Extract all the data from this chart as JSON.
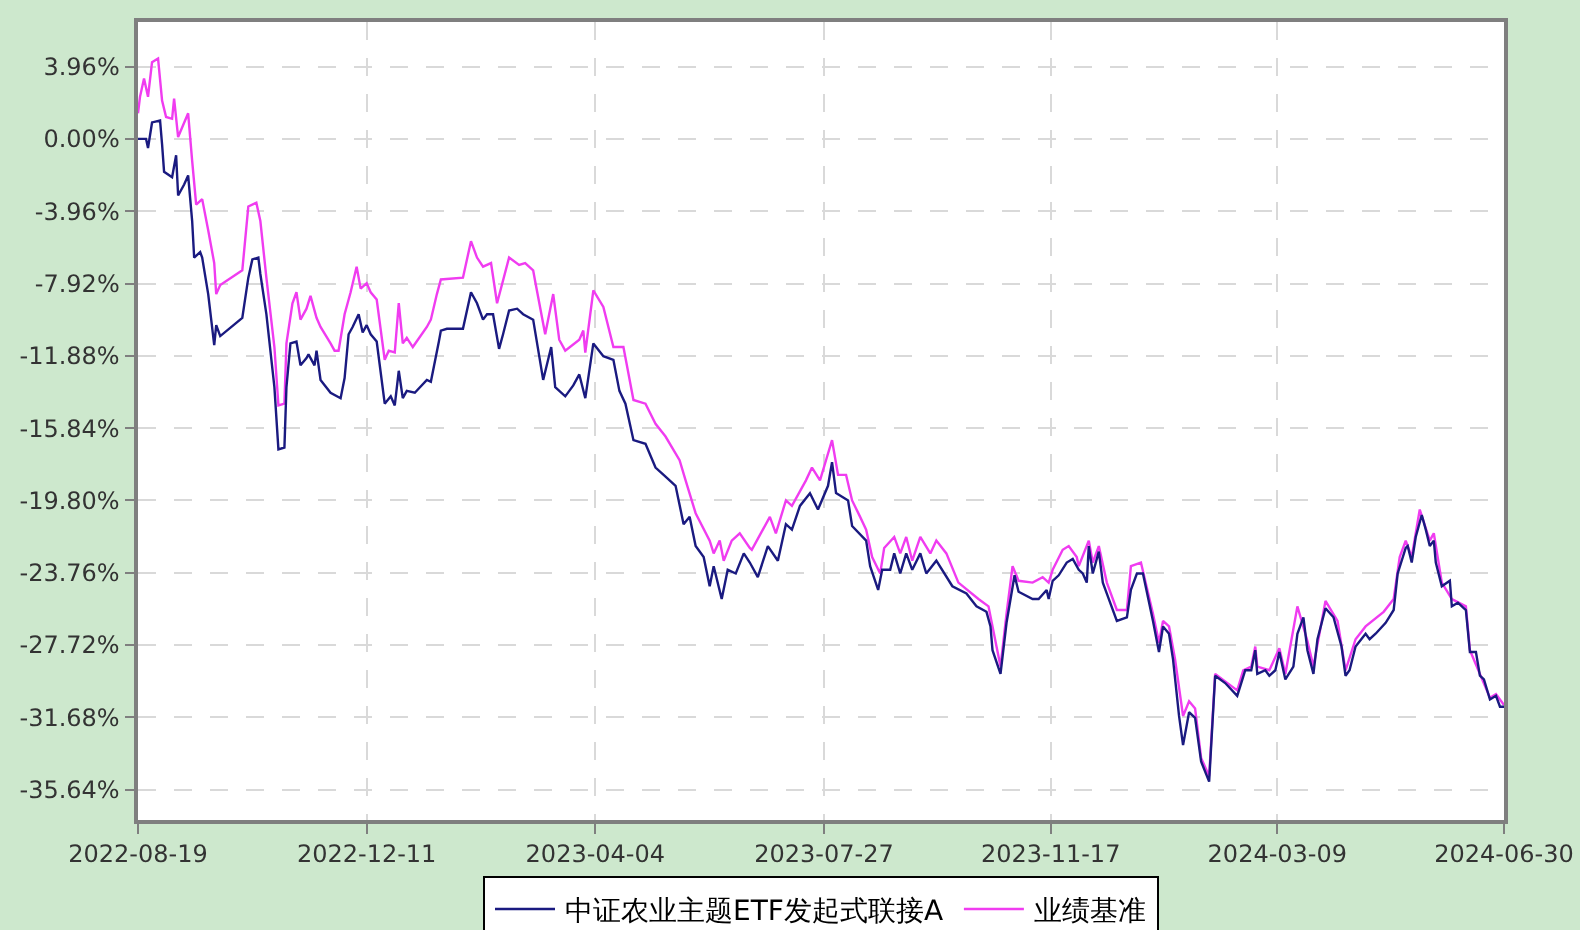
{
  "chart_data": {
    "type": "line",
    "xlim": [
      "2022-08-19",
      "2024-06-30"
    ],
    "xticks": [
      "2022-08-19",
      "2022-12-11",
      "2023-04-04",
      "2023-07-27",
      "2023-11-17",
      "2024-03-09",
      "2024-06-30"
    ],
    "ylim": [
      -37.3,
      6.4
    ],
    "yticks": [
      {
        "value": 3.96,
        "label": "3.96%"
      },
      {
        "value": 0,
        "label": "0.00%"
      },
      {
        "value": -3.96,
        "label": "-3.96%"
      },
      {
        "value": -7.92,
        "label": "-7.92%"
      },
      {
        "value": -11.88,
        "label": "-11.88%"
      },
      {
        "value": -15.84,
        "label": "-15.84%"
      },
      {
        "value": -19.8,
        "label": "-19.80%"
      },
      {
        "value": -23.76,
        "label": "-23.76%"
      },
      {
        "value": -27.72,
        "label": "-27.72%"
      },
      {
        "value": -31.68,
        "label": "-31.68%"
      },
      {
        "value": -35.64,
        "label": "-35.64%"
      }
    ],
    "grid": true,
    "legend": "bottom",
    "series": [
      {
        "name": "中证农业主题ETF发起式联接A",
        "color": "#1a1a80",
        "x": [
          "2022-08-19",
          "2022-08-23",
          "2022-08-24",
          "2022-08-26",
          "2022-08-30",
          "2022-08-31",
          "2022-09-01",
          "2022-09-05",
          "2022-09-07",
          "2022-09-08",
          "2022-09-11",
          "2022-09-13",
          "2022-09-15",
          "2022-09-16",
          "2022-09-19",
          "2022-09-20",
          "2022-09-23",
          "2022-09-26",
          "2022-09-27",
          "2022-09-29",
          "2022-10-10",
          "2022-10-13",
          "2022-10-15",
          "2022-10-18",
          "2022-10-19",
          "2022-10-22",
          "2022-10-26",
          "2022-10-28",
          "2022-10-31",
          "2022-11-01",
          "2022-11-03",
          "2022-11-06",
          "2022-11-08",
          "2022-11-11",
          "2022-11-12",
          "2022-11-15",
          "2022-11-16",
          "2022-11-18",
          "2022-11-23",
          "2022-11-28",
          "2022-11-30",
          "2022-12-02",
          "2022-12-04",
          "2022-12-07",
          "2022-12-09",
          "2022-12-11",
          "2022-12-13",
          "2022-12-16",
          "2022-12-20",
          "2022-12-23",
          "2022-12-25",
          "2022-12-27",
          "2022-12-29",
          "2022-12-31",
          "2023-01-04",
          "2023-01-10",
          "2023-01-12",
          "2023-01-16",
          "2023-01-17",
          "2023-01-20",
          "2023-01-28",
          "2023-02-01",
          "2023-02-04",
          "2023-02-07",
          "2023-02-09",
          "2023-02-12",
          "2023-02-15",
          "2023-02-17",
          "2023-02-20",
          "2023-02-24",
          "2023-02-27",
          "2023-03-04",
          "2023-03-09",
          "2023-03-13",
          "2023-03-15",
          "2023-03-20",
          "2023-03-24",
          "2023-03-27",
          "2023-03-30",
          "2023-04-03",
          "2023-04-08",
          "2023-04-13",
          "2023-04-16",
          "2023-04-19",
          "2023-04-23",
          "2023-04-29",
          "2023-05-04",
          "2023-05-09",
          "2023-05-14",
          "2023-05-18",
          "2023-05-21",
          "2023-05-24",
          "2023-05-28",
          "2023-05-31",
          "2023-06-02",
          "2023-06-06",
          "2023-06-09",
          "2023-06-13",
          "2023-06-17",
          "2023-06-20",
          "2023-06-24",
          "2023-06-29",
          "2023-07-04",
          "2023-07-08",
          "2023-07-11",
          "2023-07-15",
          "2023-07-20",
          "2023-07-24",
          "2023-07-29",
          "2023-07-31",
          "2023-08-02",
          "2023-08-05",
          "2023-08-08",
          "2023-08-10",
          "2023-08-17",
          "2023-08-19",
          "2023-08-23",
          "2023-08-25",
          "2023-08-29",
          "2023-08-31",
          "2023-09-03",
          "2023-09-06",
          "2023-09-09",
          "2023-09-13",
          "2023-09-16",
          "2023-09-21",
          "2023-09-29",
          "2023-10-06",
          "2023-10-11",
          "2023-10-16",
          "2023-10-18",
          "2023-10-19",
          "2023-10-23",
          "2023-10-26",
          "2023-10-30",
          "2023-11-01",
          "2023-11-08",
          "2023-11-11",
          "2023-11-15",
          "2023-11-16",
          "2023-11-18",
          "2023-11-21",
          "2023-11-25",
          "2023-11-28",
          "2023-12-01",
          "2023-12-03",
          "2023-12-05",
          "2023-12-06",
          "2023-12-08",
          "2023-12-11",
          "2023-12-13",
          "2023-12-15",
          "2023-12-20",
          "2023-12-25",
          "2023-12-27",
          "2023-12-30",
          "2024-01-02",
          "2024-01-07",
          "2024-01-10",
          "2024-01-12",
          "2024-01-15",
          "2024-01-17",
          "2024-01-20",
          "2024-01-22",
          "2024-01-25",
          "2024-01-28",
          "2024-01-31",
          "2024-02-04",
          "2024-02-07",
          "2024-02-12",
          "2024-02-18",
          "2024-02-20",
          "2024-02-22",
          "2024-02-25",
          "2024-02-27",
          "2024-02-28",
          "2024-03-03",
          "2024-03-05",
          "2024-03-08",
          "2024-03-10",
          "2024-03-13",
          "2024-03-17",
          "2024-03-19",
          "2024-03-22",
          "2024-03-24",
          "2024-03-27",
          "2024-03-29",
          "2024-04-02",
          "2024-04-06",
          "2024-04-10",
          "2024-04-12",
          "2024-04-14",
          "2024-04-17",
          "2024-04-22",
          "2024-04-24",
          "2024-04-27",
          "2024-05-02",
          "2024-05-06",
          "2024-05-08",
          "2024-05-12",
          "2024-05-13",
          "2024-05-15",
          "2024-05-17",
          "2024-05-20",
          "2024-05-22",
          "2024-05-24",
          "2024-05-26",
          "2024-05-27",
          "2024-05-30",
          "2024-06-03",
          "2024-06-04",
          "2024-06-07",
          "2024-06-11",
          "2024-06-13",
          "2024-06-16",
          "2024-06-18",
          "2024-06-20",
          "2024-06-23",
          "2024-06-26",
          "2024-06-28",
          "2024-06-30"
        ],
        "values": [
          0.0,
          0.0,
          -0.5,
          0.9,
          1.0,
          -0.3,
          -1.8,
          -2.1,
          -0.9,
          -3.1,
          -2.5,
          -2.0,
          -4.5,
          -6.5,
          -6.2,
          -6.5,
          -8.5,
          -11.3,
          -10.2,
          -10.8,
          -9.8,
          -7.6,
          -6.6,
          -6.5,
          -7.4,
          -9.6,
          -13.6,
          -17.0,
          -16.9,
          -13.6,
          -11.2,
          -11.1,
          -12.4,
          -12.0,
          -11.8,
          -12.4,
          -11.6,
          -13.2,
          -13.9,
          -14.2,
          -13.1,
          -10.7,
          -10.3,
          -9.6,
          -10.6,
          -10.2,
          -10.7,
          -11.1,
          -14.5,
          -14.1,
          -14.6,
          -12.7,
          -14.2,
          -13.8,
          -13.9,
          -13.2,
          -13.3,
          -11.1,
          -10.5,
          -10.4,
          -10.4,
          -8.4,
          -9.0,
          -9.9,
          -9.6,
          -9.6,
          -11.5,
          -10.7,
          -9.4,
          -9.3,
          -9.6,
          -9.9,
          -13.2,
          -11.4,
          -13.6,
          -14.1,
          -13.5,
          -12.9,
          -14.2,
          -11.2,
          -11.9,
          -12.1,
          -13.8,
          -14.5,
          -16.5,
          -16.7,
          -18.0,
          -18.5,
          -19.0,
          -21.1,
          -20.7,
          -22.3,
          -22.9,
          -24.5,
          -23.4,
          -25.2,
          -23.6,
          -23.8,
          -22.7,
          -23.2,
          -24.0,
          -22.3,
          -23.1,
          -21.1,
          -21.4,
          -20.1,
          -19.4,
          -20.3,
          -19.0,
          -17.7,
          -19.4,
          -19.6,
          -19.8,
          -21.2,
          -22.0,
          -23.4,
          -24.7,
          -23.6,
          -23.6,
          -22.7,
          -23.8,
          -22.7,
          -23.6,
          -22.7,
          -23.8,
          -23.1,
          -24.5,
          -24.9,
          -25.6,
          -25.9,
          -26.7,
          -28.0,
          -29.3,
          -26.5,
          -23.9,
          -24.8,
          -25.2,
          -25.2,
          -24.7,
          -25.2,
          -24.2,
          -23.9,
          -23.2,
          -23.0,
          -23.6,
          -23.8,
          -24.3,
          -22.3,
          -23.8,
          -22.6,
          -24.3,
          -24.9,
          -26.4,
          -26.2,
          -24.7,
          -23.8,
          -23.8,
          -26.4,
          -28.1,
          -26.7,
          -27.1,
          -28.5,
          -31.6,
          -33.2,
          -31.4,
          -31.7,
          -34.1,
          -35.2,
          -29.4,
          -29.8,
          -30.5,
          -29.8,
          -29.1,
          -29.1,
          -28.0,
          -29.3,
          -29.1,
          -29.4,
          -29.1,
          -28.1,
          -29.6,
          -28.9,
          -27.1,
          -26.2,
          -28.0,
          -29.3,
          -27.4,
          -25.7,
          -26.2,
          -27.8,
          -29.4,
          -29.1,
          -27.8,
          -27.1,
          -27.4,
          -27.1,
          -26.5,
          -25.8,
          -23.8,
          -22.4,
          -22.3,
          -23.2,
          -21.8,
          -20.6,
          -21.4,
          -22.3,
          -22.0,
          -23.2,
          -24.5,
          -24.2,
          -25.6,
          -25.4,
          -25.8,
          -28.1,
          -28.1,
          -29.4,
          -29.6,
          -30.7,
          -30.5,
          -31.1,
          -31.1
        ]
      },
      {
        "name": "业绩基准",
        "color": "#f03cf0",
        "x": [
          "2022-08-19",
          "2022-08-20",
          "2022-08-22",
          "2022-08-24",
          "2022-08-26",
          "2022-08-29",
          "2022-08-31",
          "2022-09-02",
          "2022-09-05",
          "2022-09-06",
          "2022-09-08",
          "2022-09-13",
          "2022-09-15",
          "2022-09-17",
          "2022-09-20",
          "2022-09-23",
          "2022-09-26",
          "2022-09-27",
          "2022-09-29",
          "2022-10-10",
          "2022-10-13",
          "2022-10-17",
          "2022-10-19",
          "2022-10-22",
          "2022-10-26",
          "2022-10-28",
          "2022-10-31",
          "2022-11-01",
          "2022-11-04",
          "2022-11-06",
          "2022-11-08",
          "2022-11-11",
          "2022-11-13",
          "2022-11-16",
          "2022-11-18",
          "2022-11-23",
          "2022-11-25",
          "2022-11-27",
          "2022-11-30",
          "2022-12-03",
          "2022-12-06",
          "2022-12-08",
          "2022-12-11",
          "2022-12-13",
          "2022-12-16",
          "2022-12-20",
          "2022-12-22",
          "2022-12-25",
          "2022-12-27",
          "2022-12-29",
          "2022-12-31",
          "2023-01-03",
          "2023-01-10",
          "2023-01-12",
          "2023-01-15",
          "2023-01-17",
          "2023-01-28",
          "2023-02-01",
          "2023-02-04",
          "2023-02-07",
          "2023-02-11",
          "2023-02-14",
          "2023-02-20",
          "2023-02-25",
          "2023-02-28",
          "2023-03-04",
          "2023-03-05",
          "2023-03-10",
          "2023-03-14",
          "2023-03-17",
          "2023-03-20",
          "2023-03-27",
          "2023-03-29",
          "2023-03-30",
          "2023-04-03",
          "2023-04-08",
          "2023-04-13",
          "2023-04-18",
          "2023-04-23",
          "2023-04-29",
          "2023-05-04",
          "2023-05-09",
          "2023-05-16",
          "2023-05-19",
          "2023-05-24",
          "2023-05-31",
          "2023-06-02",
          "2023-06-05",
          "2023-06-07",
          "2023-06-11",
          "2023-06-15",
          "2023-06-20",
          "2023-06-21",
          "2023-06-25",
          "2023-06-30",
          "2023-07-03",
          "2023-07-08",
          "2023-07-11",
          "2023-07-18",
          "2023-07-21",
          "2023-07-25",
          "2023-07-28",
          "2023-07-31",
          "2023-08-03",
          "2023-08-07",
          "2023-08-10",
          "2023-08-14",
          "2023-08-17",
          "2023-08-20",
          "2023-08-24",
          "2023-08-26",
          "2023-08-31",
          "2023-09-03",
          "2023-09-06",
          "2023-09-09",
          "2023-09-13",
          "2023-09-18",
          "2023-09-21",
          "2023-09-26",
          "2023-10-02",
          "2023-10-12",
          "2023-10-17",
          "2023-10-21",
          "2023-10-23",
          "2023-10-26",
          "2023-10-29",
          "2023-11-01",
          "2023-11-08",
          "2023-11-13",
          "2023-11-16",
          "2023-11-18",
          "2023-11-23",
          "2023-11-26",
          "2023-11-30",
          "2023-12-01",
          "2023-12-06",
          "2023-12-08",
          "2023-12-11",
          "2023-12-15",
          "2023-12-20",
          "2023-12-25",
          "2023-12-27",
          "2024-01-01",
          "2024-01-07",
          "2024-01-10",
          "2024-01-12",
          "2024-01-15",
          "2024-01-18",
          "2024-01-22",
          "2024-01-25",
          "2024-01-28",
          "2024-01-31",
          "2024-02-04",
          "2024-02-07",
          "2024-02-18",
          "2024-02-21",
          "2024-02-25",
          "2024-02-27",
          "2024-02-28",
          "2024-03-05",
          "2024-03-10",
          "2024-03-13",
          "2024-03-19",
          "2024-03-24",
          "2024-03-27",
          "2024-04-02",
          "2024-04-08",
          "2024-04-12",
          "2024-04-17",
          "2024-04-22",
          "2024-05-01",
          "2024-05-06",
          "2024-05-09",
          "2024-05-12",
          "2024-05-15",
          "2024-05-19",
          "2024-05-24",
          "2024-05-26",
          "2024-05-30",
          "2024-06-04",
          "2024-06-11",
          "2024-06-13",
          "2024-06-18",
          "2024-06-23",
          "2024-06-26",
          "2024-06-30"
        ],
        "values": [
          1.4,
          2.3,
          3.3,
          2.3,
          4.2,
          4.4,
          2.1,
          1.2,
          1.1,
          2.2,
          0.1,
          1.4,
          -1.2,
          -3.6,
          -3.3,
          -5.0,
          -6.8,
          -8.5,
          -8.0,
          -7.2,
          -3.7,
          -3.5,
          -4.5,
          -7.6,
          -11.4,
          -14.6,
          -14.5,
          -11.2,
          -9.0,
          -8.4,
          -9.9,
          -9.3,
          -8.6,
          -9.8,
          -10.3,
          -11.2,
          -11.6,
          -11.6,
          -9.6,
          -8.4,
          -7.0,
          -8.2,
          -7.9,
          -8.4,
          -8.8,
          -12.1,
          -11.6,
          -11.7,
          -9.0,
          -11.2,
          -10.9,
          -11.4,
          -10.3,
          -9.9,
          -8.5,
          -7.7,
          -7.6,
          -5.6,
          -6.5,
          -7.0,
          -6.8,
          -9.0,
          -6.5,
          -6.9,
          -6.8,
          -7.2,
          -7.8,
          -10.7,
          -8.5,
          -11.0,
          -11.6,
          -11.0,
          -10.5,
          -11.7,
          -8.3,
          -9.2,
          -11.4,
          -11.4,
          -14.3,
          -14.5,
          -15.6,
          -16.3,
          -17.6,
          -18.7,
          -20.5,
          -22.0,
          -22.7,
          -22.0,
          -23.1,
          -22.0,
          -21.6,
          -22.4,
          -22.5,
          -21.7,
          -20.7,
          -21.6,
          -19.8,
          -20.1,
          -18.7,
          -18.0,
          -18.7,
          -17.6,
          -16.5,
          -18.4,
          -18.4,
          -19.8,
          -20.7,
          -21.4,
          -22.9,
          -23.8,
          -22.4,
          -21.8,
          -22.7,
          -21.8,
          -23.1,
          -21.8,
          -22.7,
          -22.0,
          -22.7,
          -24.3,
          -25.2,
          -25.6,
          -27.8,
          -28.9,
          -26.0,
          -23.4,
          -24.2,
          -24.3,
          -24.0,
          -24.3,
          -23.6,
          -22.5,
          -22.3,
          -22.9,
          -23.4,
          -22.0,
          -23.2,
          -22.3,
          -24.3,
          -25.8,
          -25.8,
          -23.4,
          -23.2,
          -26.0,
          -27.6,
          -26.4,
          -26.7,
          -28.5,
          -31.6,
          -30.8,
          -31.2,
          -33.9,
          -34.9,
          -29.3,
          -30.2,
          -29.1,
          -28.9,
          -27.8,
          -28.9,
          -29.1,
          -27.9,
          -29.3,
          -25.6,
          -27.5,
          -28.9,
          -25.3,
          -26.4,
          -29.1,
          -27.4,
          -26.7,
          -25.9,
          -25.2,
          -22.9,
          -22.0,
          -22.9,
          -20.3,
          -22.0,
          -21.6,
          -24.3,
          -25.2,
          -25.6,
          -28.0,
          -29.3,
          -30.6,
          -30.4,
          -31.0
        ]
      }
    ]
  }
}
